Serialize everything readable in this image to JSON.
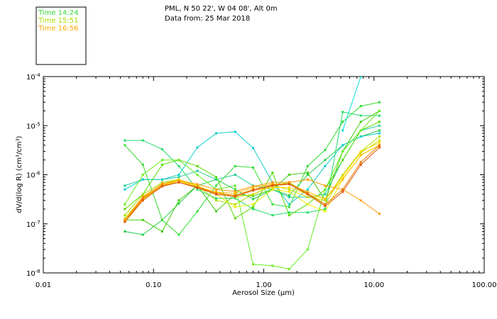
{
  "header": {
    "location": "PML, N 50 22', W 04 08', Alt 0m",
    "date": "Data from: 25 Mar 2018"
  },
  "legend": [
    {
      "label": "Time 14:24",
      "color": "#33dd33"
    },
    {
      "label": "Time 15:51",
      "color": "#aadd00"
    },
    {
      "label": "Time 16:56",
      "color": "#ffaa00"
    }
  ],
  "chart_data": {
    "type": "line",
    "xscale": "log",
    "yscale": "log",
    "xlabel": "Aerosol Size (μm)",
    "ylabel": "dV/d(log R) (cm³/cm³)",
    "xlim": [
      0.01,
      100
    ],
    "ylim": [
      1e-08,
      0.0001
    ],
    "xticks": [
      {
        "value": 0.01,
        "label": "0.01"
      },
      {
        "value": 0.1,
        "label": "0.10"
      },
      {
        "value": 1,
        "label": "1.00"
      },
      {
        "value": 10,
        "label": "10.00"
      },
      {
        "value": 100,
        "label": "100.00"
      }
    ],
    "yticks": [
      {
        "value": 1e-08,
        "base": "10",
        "exp": "-8"
      },
      {
        "value": 1e-07,
        "base": "10",
        "exp": "-7"
      },
      {
        "value": 1e-06,
        "base": "10",
        "exp": "-6"
      },
      {
        "value": 1e-05,
        "base": "10",
        "exp": "-5"
      },
      {
        "value": 0.0001,
        "base": "10",
        "exp": "-4"
      }
    ],
    "x": [
      0.055,
      0.08,
      0.12,
      0.17,
      0.25,
      0.37,
      0.55,
      0.8,
      1.2,
      1.7,
      2.5,
      3.6,
      5.2,
      7.6,
      11.2
    ],
    "series": [
      {
        "name": "s01",
        "color": "#22cc44",
        "values": [
          7e-08,
          6e-08,
          1.2e-07,
          2.6e-07,
          6e-07,
          8e-07,
          5e-07,
          3.2e-07,
          5e-07,
          3.8e-07,
          1e-06,
          2e-06,
          4e-06,
          6e-06,
          8e-06
        ]
      },
      {
        "name": "s02",
        "color": "#22dd66",
        "values": [
          5e-06,
          5e-06,
          3.3e-06,
          1.5e-06,
          5e-07,
          3.3e-07,
          3.3e-07,
          2e-07,
          1.5e-07,
          1.7e-07,
          1.7e-07,
          2e-07,
          1.9e-05,
          1.6e-05,
          1.6e-05
        ]
      },
      {
        "name": "s03",
        "color": "#22cc99",
        "values": [
          6e-07,
          8e-07,
          8e-07,
          9e-07,
          1.2e-06,
          8e-07,
          1e-06,
          6e-07,
          5e-07,
          3.5e-07,
          3.5e-07,
          4e-07,
          2e-06,
          8e-06,
          1e-05
        ]
      },
      {
        "name": "s04",
        "color": "#11cccc",
        "values": [
          5e-07,
          8e-07,
          8e-07,
          1e-06,
          3.6e-06,
          7e-06,
          7.5e-06,
          3.5e-06,
          7e-07,
          2.5e-07,
          5e-07,
          1.5e-06,
          4e-06,
          6e-06,
          7e-06
        ]
      },
      {
        "name": "s05",
        "color": "#33dd33",
        "values": [
          4e-06,
          1.6e-06,
          1.2e-07,
          6e-08,
          1.8e-07,
          6e-07,
          1.5e-06,
          1.4e-06,
          2.5e-07,
          2.2e-07,
          1.5e-06,
          3.2e-06,
          1.2e-05,
          2.5e-05,
          3e-05
        ]
      },
      {
        "name": "s06",
        "color": "#44cc11",
        "values": [
          1.2e-07,
          1.2e-07,
          7e-08,
          3e-07,
          6e-07,
          1.8e-07,
          4e-07,
          3.7e-07,
          5e-07,
          1e-06,
          1.1e-06,
          3e-07,
          3e-06,
          1.2e-05,
          2e-05
        ]
      },
      {
        "name": "s07",
        "color": "#55dd00",
        "values": [
          2e-07,
          4e-07,
          1.6e-06,
          2e-06,
          1.5e-06,
          9e-07,
          1.3e-07,
          2.2e-07,
          1.1e-06,
          1.5e-07,
          2.5e-07,
          5e-07,
          2e-06,
          8e-06,
          1.2e-05
        ]
      },
      {
        "name": "s08",
        "color": "#66ee22",
        "values": [
          2.5e-07,
          1e-06,
          2e-06,
          2e-06,
          1e-06,
          5e-07,
          6e-07,
          1.5e-08,
          1.4e-08,
          1.2e-08,
          3e-08,
          5e-07,
          3e-06,
          8e-06,
          2e-05
        ]
      },
      {
        "name": "s09",
        "color": "#aadd00",
        "values": [
          1.5e-07,
          4e-07,
          7e-07,
          8e-07,
          6e-07,
          3e-07,
          2.5e-07,
          4e-07,
          6e-07,
          7e-07,
          4e-07,
          2.5e-07,
          1e-06,
          3e-06,
          6e-06
        ]
      },
      {
        "name": "s10",
        "color": "#ccdd00",
        "values": [
          1.3e-07,
          3.5e-07,
          6e-07,
          7e-07,
          5.5e-07,
          4.5e-07,
          3.5e-07,
          4e-07,
          6e-07,
          5e-07,
          3.5e-07,
          3e-07,
          1e-06,
          2.8e-06,
          5e-06
        ]
      },
      {
        "name": "s11",
        "color": "#eeee00",
        "values": [
          1.1e-07,
          3e-07,
          6.5e-07,
          8e-07,
          6e-07,
          4e-07,
          2.2e-07,
          2.5e-07,
          5e-07,
          4.5e-07,
          2.5e-07,
          1.8e-07,
          8e-07,
          2.5e-06,
          4e-06
        ]
      },
      {
        "name": "s12",
        "color": "#ffdd00",
        "values": [
          1.2e-07,
          3.2e-07,
          6e-07,
          7.5e-07,
          5.5e-07,
          4.2e-07,
          3.8e-07,
          4.8e-07,
          5.5e-07,
          5.5e-07,
          4e-07,
          3.2e-07,
          9e-07,
          3e-06,
          4.5e-06
        ]
      },
      {
        "name": "s13",
        "color": "#ffbb00",
        "values": [
          1.2e-07,
          3.4e-07,
          6.2e-07,
          7.8e-07,
          5.8e-07,
          4.4e-07,
          4.2e-07,
          5.5e-07,
          6.5e-07,
          6.5e-07,
          4.5e-07,
          3.2e-07,
          8e-07,
          2.5e-06,
          4e-06
        ]
      },
      {
        "name": "s14",
        "color": "#ff9900",
        "values": [
          1.2e-07,
          3.6e-07,
          6.6e-07,
          7.6e-07,
          6.4e-07,
          5e-07,
          4.6e-07,
          5.8e-07,
          7e-07,
          7e-07,
          8e-07,
          6e-07,
          5e-07,
          3e-07,
          1.6e-07
        ]
      },
      {
        "name": "s15",
        "color": "#ee7700",
        "values": [
          1.1e-07,
          3.3e-07,
          6e-07,
          7e-07,
          5.6e-07,
          4.2e-07,
          3.8e-07,
          5e-07,
          6.2e-07,
          6.6e-07,
          4.2e-07,
          2.5e-07,
          5e-07,
          1.8e-06,
          4e-06
        ]
      },
      {
        "name": "s16",
        "color": "#dd5500",
        "values": [
          1.1e-07,
          3e-07,
          5.8e-07,
          7e-07,
          5.4e-07,
          4e-07,
          3.6e-07,
          4.8e-07,
          6e-07,
          6.4e-07,
          4e-07,
          2.3e-07,
          4.5e-07,
          1.6e-06,
          3.6e-06
        ]
      },
      {
        "name": "s17",
        "color": "#00dddd",
        "values": [
          null,
          null,
          null,
          null,
          null,
          null,
          null,
          null,
          null,
          null,
          null,
          null,
          8e-06,
          0.0001,
          null
        ]
      }
    ]
  }
}
